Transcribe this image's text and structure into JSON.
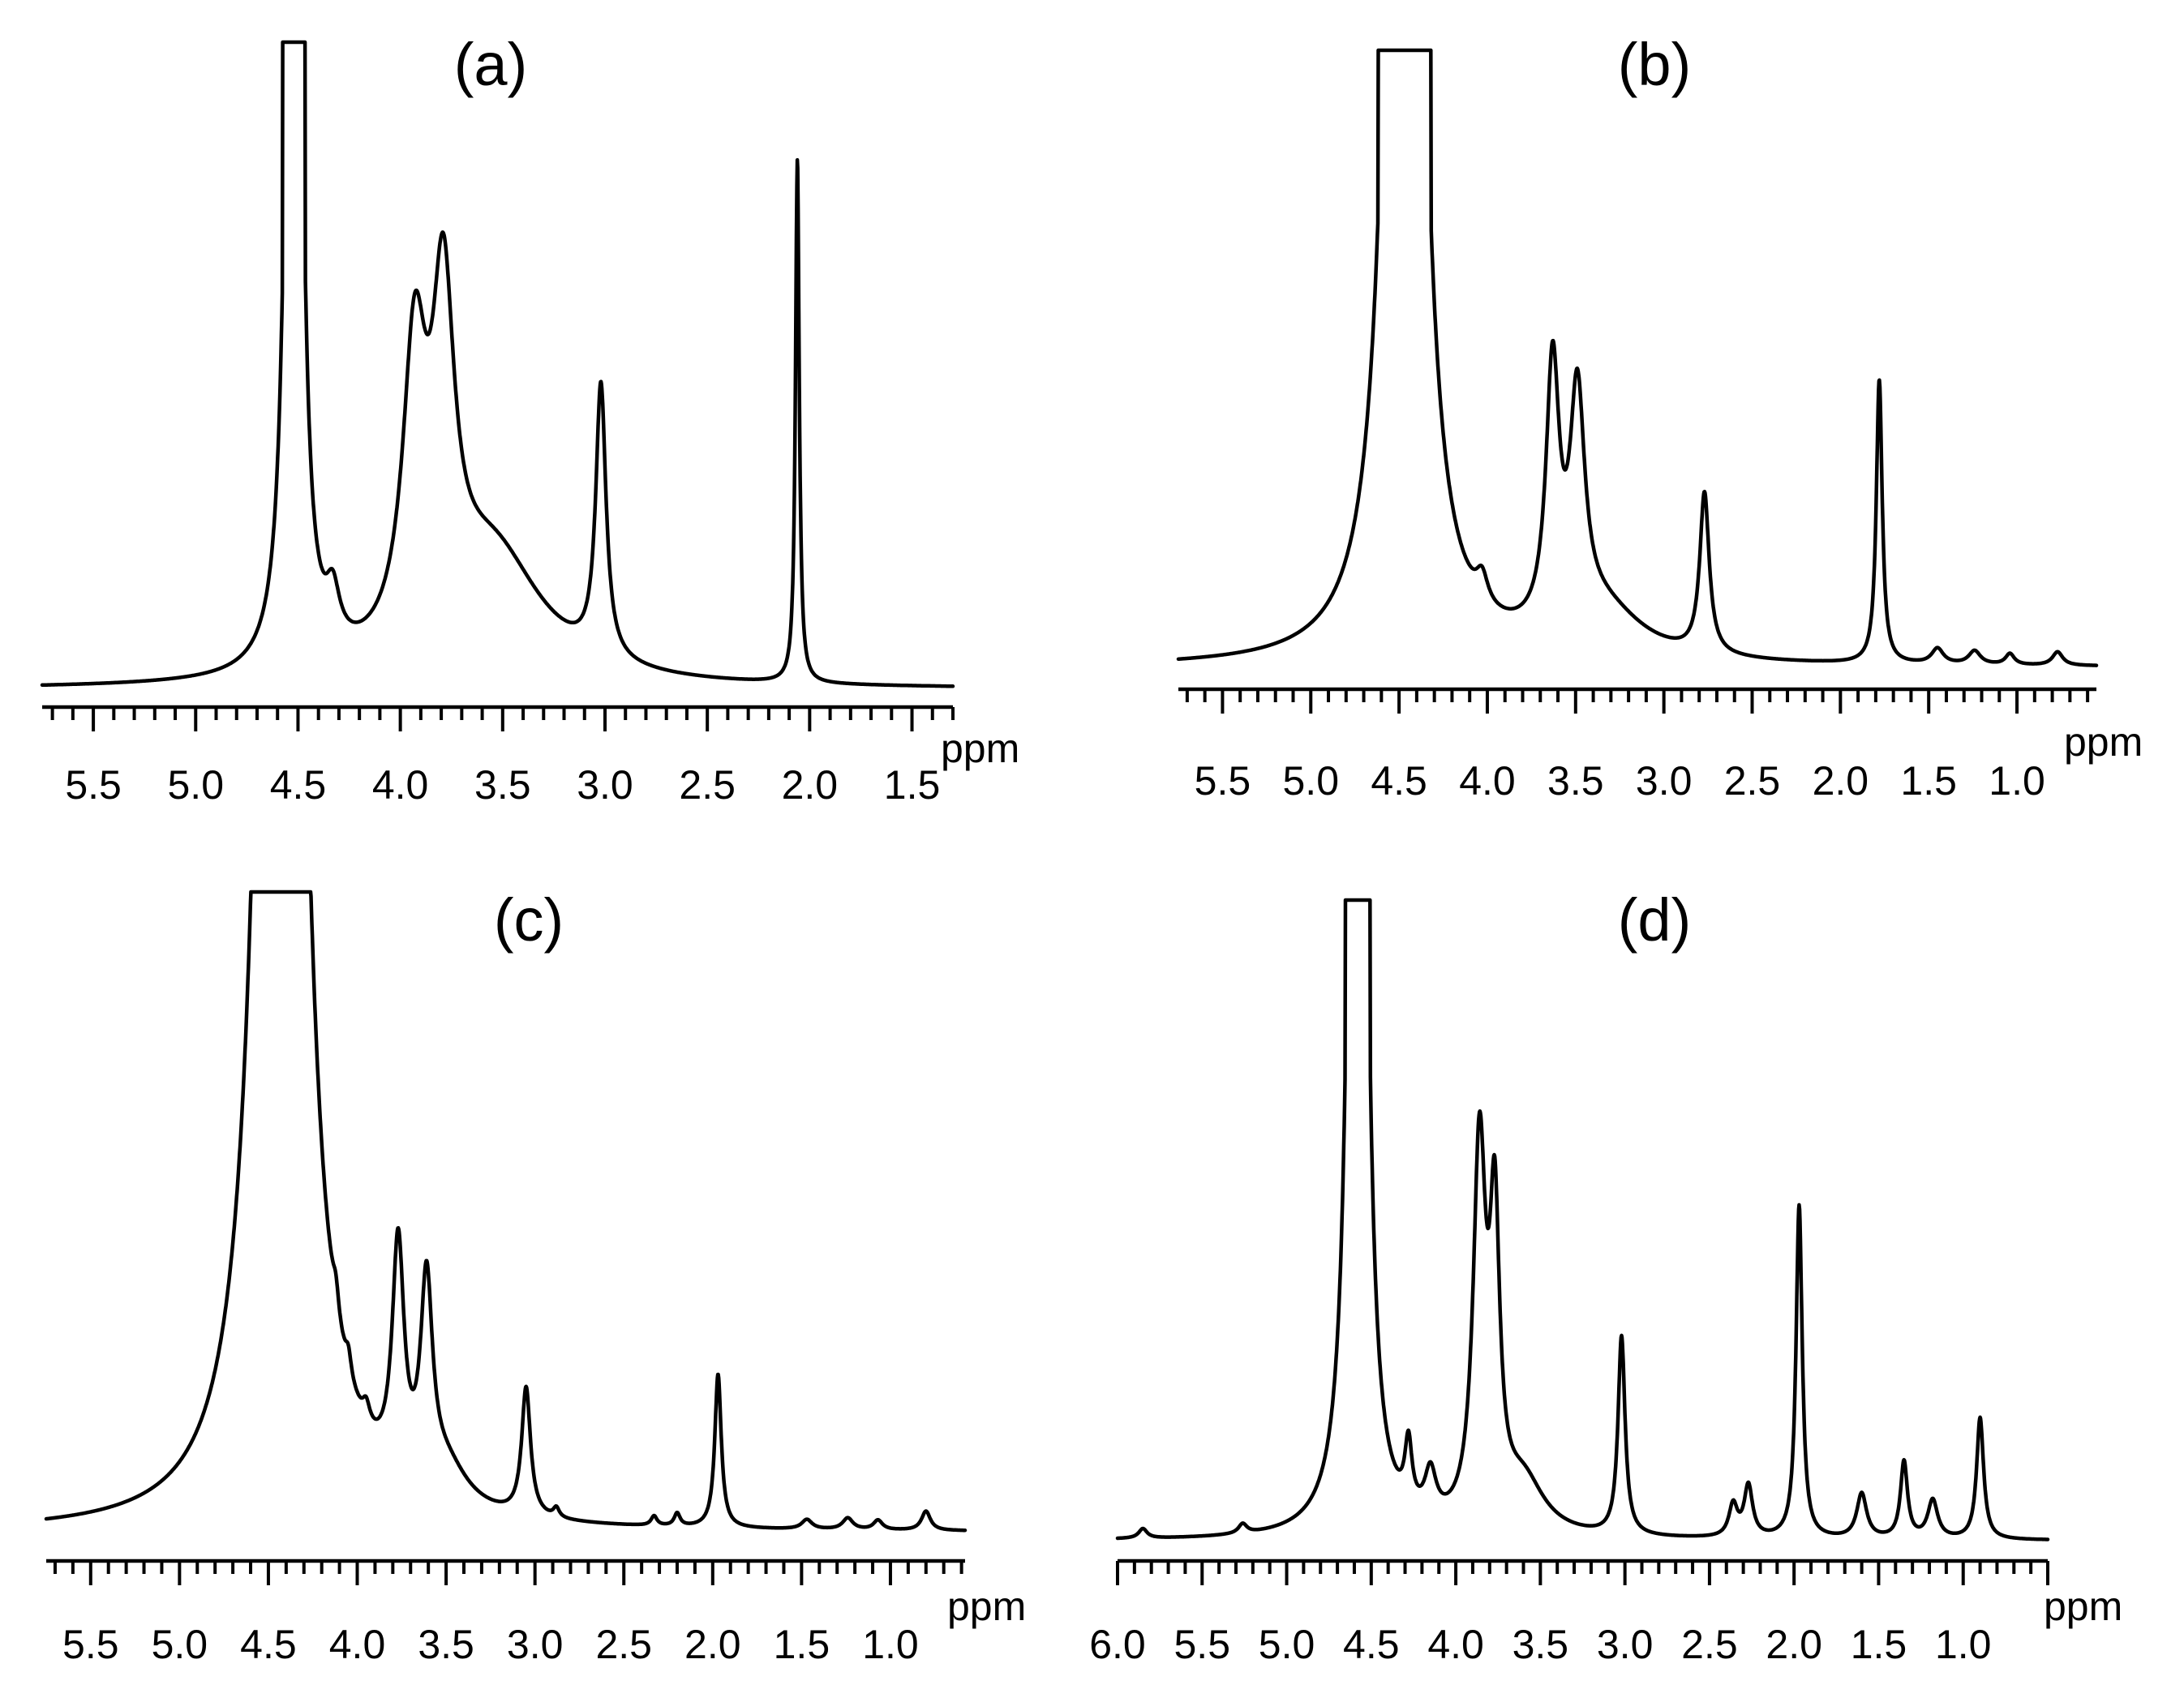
{
  "figure": {
    "description": "Four 1H NMR spectra, panels (a)-(d)"
  },
  "chart_data": [
    {
      "type": "line",
      "panel": "(a)",
      "xlabel": "ppm",
      "xlim": [
        5.75,
        1.3
      ],
      "x_ticks": [
        "5.5",
        "5.0",
        "4.5",
        "4.0",
        "3.5",
        "3.0",
        "2.5",
        "2.0",
        "1.5"
      ],
      "baseline": 0.0,
      "clipped_peak": {
        "center": 4.52,
        "half_width": 0.055,
        "top": 1.0
      },
      "peaks": [
        {
          "ppm": 4.52,
          "height": 3.0,
          "width": 0.028
        },
        {
          "ppm": 4.33,
          "height": 0.075,
          "width": 0.04
        },
        {
          "ppm": 3.93,
          "height": 0.44,
          "width": 0.07
        },
        {
          "ppm": 3.79,
          "height": 0.49,
          "width": 0.065
        },
        {
          "ppm": 3.55,
          "height": 0.2,
          "width": 0.3
        },
        {
          "ppm": 3.02,
          "height": 0.42,
          "width": 0.03
        },
        {
          "ppm": 2.06,
          "height": 0.81,
          "width": 0.011
        }
      ]
    },
    {
      "type": "line",
      "panel": "(b)",
      "xlabel": "ppm",
      "xlim": [
        5.75,
        0.55
      ],
      "x_ticks": [
        "5.5",
        "5.0",
        "4.5",
        "4.0",
        "3.5",
        "3.0",
        "2.5",
        "2.0",
        "1.5",
        "1.0"
      ],
      "baseline": 0.0,
      "clipped_peak": {
        "center": 4.47,
        "half_width": 0.15,
        "top": 1.0
      },
      "peaks": [
        {
          "ppm": 4.47,
          "height": 4.0,
          "width": 0.07
        },
        {
          "ppm": 4.03,
          "height": 0.045,
          "width": 0.04
        },
        {
          "ppm": 3.63,
          "height": 0.42,
          "width": 0.045
        },
        {
          "ppm": 3.49,
          "height": 0.36,
          "width": 0.05
        },
        {
          "ppm": 3.35,
          "height": 0.08,
          "width": 0.28
        },
        {
          "ppm": 2.77,
          "height": 0.26,
          "width": 0.032
        },
        {
          "ppm": 1.78,
          "height": 0.46,
          "width": 0.02
        },
        {
          "ppm": 1.45,
          "height": 0.025,
          "width": 0.04
        },
        {
          "ppm": 1.24,
          "height": 0.022,
          "width": 0.04
        },
        {
          "ppm": 1.04,
          "height": 0.018,
          "width": 0.03
        },
        {
          "ppm": 0.77,
          "height": 0.022,
          "width": 0.035
        }
      ]
    },
    {
      "type": "line",
      "panel": "(c)",
      "xlabel": "ppm",
      "xlim": [
        5.75,
        0.58
      ],
      "x_ticks": [
        "5.5",
        "5.0",
        "4.5",
        "4.0",
        "3.5",
        "3.0",
        "2.5",
        "2.0",
        "1.5",
        "1.0"
      ],
      "baseline": 0.0,
      "clipped_peak": {
        "center": 4.43,
        "half_width": 0.16,
        "top": 1.0
      },
      "peaks": [
        {
          "ppm": 4.43,
          "height": 4.5,
          "width": 0.09
        },
        {
          "ppm": 4.12,
          "height": 0.04,
          "width": 0.02
        },
        {
          "ppm": 4.05,
          "height": 0.035,
          "width": 0.02
        },
        {
          "ppm": 3.95,
          "height": 0.03,
          "width": 0.025
        },
        {
          "ppm": 3.77,
          "height": 0.36,
          "width": 0.04
        },
        {
          "ppm": 3.61,
          "height": 0.31,
          "width": 0.04
        },
        {
          "ppm": 3.5,
          "height": 0.06,
          "width": 0.15
        },
        {
          "ppm": 3.05,
          "height": 0.2,
          "width": 0.03
        },
        {
          "ppm": 2.88,
          "height": 0.015,
          "width": 0.02
        },
        {
          "ppm": 2.33,
          "height": 0.015,
          "width": 0.02
        },
        {
          "ppm": 2.2,
          "height": 0.02,
          "width": 0.02
        },
        {
          "ppm": 1.97,
          "height": 0.24,
          "width": 0.022
        },
        {
          "ppm": 1.47,
          "height": 0.015,
          "width": 0.035
        },
        {
          "ppm": 1.24,
          "height": 0.018,
          "width": 0.035
        },
        {
          "ppm": 1.07,
          "height": 0.015,
          "width": 0.03
        },
        {
          "ppm": 0.8,
          "height": 0.03,
          "width": 0.03
        }
      ]
    },
    {
      "type": "line",
      "panel": "(d)",
      "xlabel": "ppm",
      "xlim": [
        6.0,
        0.5
      ],
      "x_ticks": [
        "6.0",
        "5.5",
        "5.0",
        "4.5",
        "4.0",
        "3.5",
        "3.0",
        "2.5",
        "2.0",
        "1.5",
        "1.0"
      ],
      "baseline": 0.0,
      "clipped_peak": {
        "center": 4.58,
        "half_width": 0.075,
        "top": 1.0
      },
      "peaks": [
        {
          "ppm": 5.85,
          "height": 0.015,
          "width": 0.03
        },
        {
          "ppm": 5.26,
          "height": 0.015,
          "width": 0.03
        },
        {
          "ppm": 4.58,
          "height": 4.0,
          "width": 0.035
        },
        {
          "ppm": 4.28,
          "height": 0.1,
          "width": 0.025
        },
        {
          "ppm": 4.15,
          "height": 0.07,
          "width": 0.04
        },
        {
          "ppm": 3.86,
          "height": 0.58,
          "width": 0.045
        },
        {
          "ppm": 3.77,
          "height": 0.44,
          "width": 0.035
        },
        {
          "ppm": 3.6,
          "height": 0.08,
          "width": 0.15
        },
        {
          "ppm": 3.02,
          "height": 0.31,
          "width": 0.025
        },
        {
          "ppm": 2.36,
          "height": 0.05,
          "width": 0.03
        },
        {
          "ppm": 2.27,
          "height": 0.08,
          "width": 0.03
        },
        {
          "ppm": 1.97,
          "height": 0.52,
          "width": 0.022
        },
        {
          "ppm": 1.6,
          "height": 0.07,
          "width": 0.035
        },
        {
          "ppm": 1.35,
          "height": 0.12,
          "width": 0.025
        },
        {
          "ppm": 1.18,
          "height": 0.06,
          "width": 0.035
        },
        {
          "ppm": 0.9,
          "height": 0.19,
          "width": 0.025
        }
      ]
    }
  ]
}
